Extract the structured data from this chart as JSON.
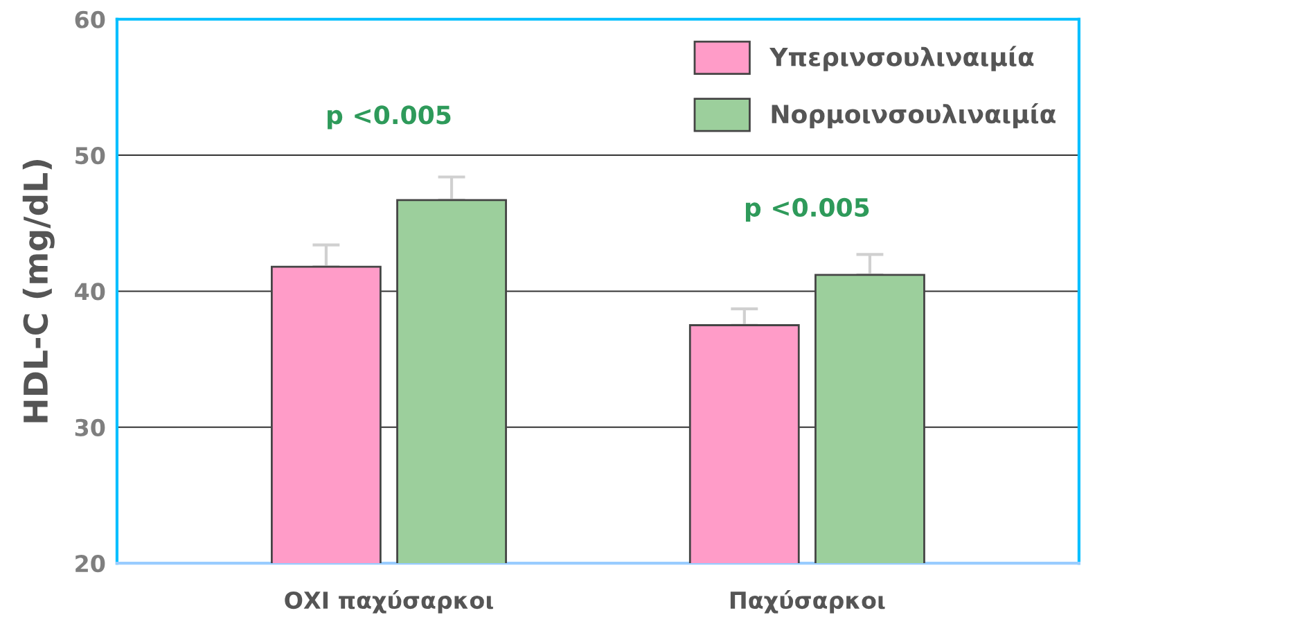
{
  "chart_data": {
    "type": "bar",
    "ylabel": "HDL-C (mg/dL)",
    "categories": [
      "ΟΧΙ παχύσαρκοι",
      "Παχύσαρκοι"
    ],
    "series": [
      {
        "name": "Υπερινσουλιναιμία",
        "color": "#ff9cc8",
        "values": [
          41.8,
          37.5
        ],
        "errors": [
          [
            41.8,
            43.4
          ],
          [
            37.5,
            38.7
          ]
        ]
      },
      {
        "name": "Νορμοινσουλιναιμία",
        "color": "#9ccf9c",
        "values": [
          46.7,
          41.2
        ],
        "errors": [
          [
            46.7,
            48.4
          ],
          [
            41.2,
            42.7
          ]
        ]
      }
    ],
    "ylim": [
      20,
      60
    ],
    "yticks": [
      20,
      30,
      40,
      50,
      60
    ],
    "grid": "y",
    "legend": "top right",
    "annotations": [
      "p <0.005",
      "p <0.005"
    ]
  }
}
